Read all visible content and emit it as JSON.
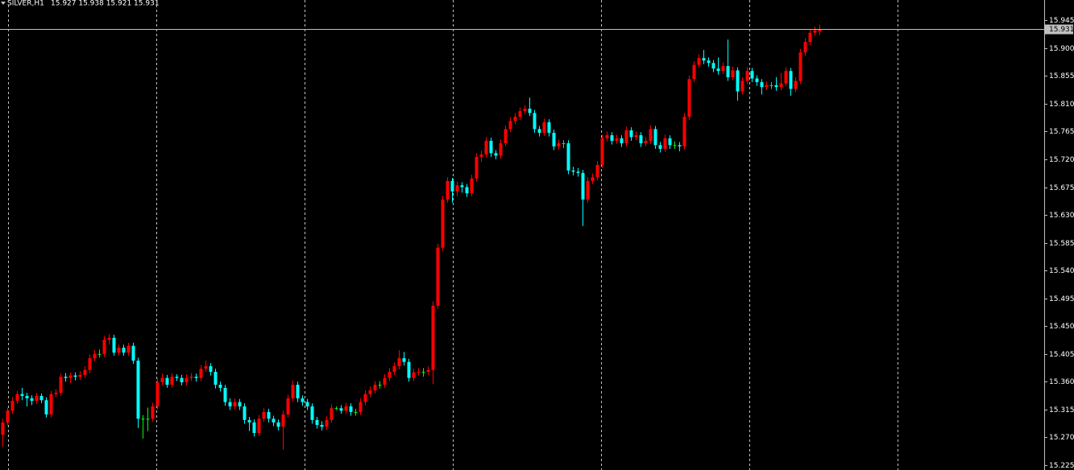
{
  "chart_data": {
    "type": "candlestick",
    "title": "SILVER,H1",
    "subtitle": "15.927 15.938 15.921 15.931",
    "up_color": "#ff0000",
    "down_color": "#00ffff",
    "doji_color": "#00ff00",
    "grid": true,
    "ylim": [
      15.217,
      15.978
    ],
    "yticks": [
      15.945,
      {
        "value": 15.9,
        "label": "15.900"
      },
      15.855,
      {
        "value": 15.81,
        "label": "15.810"
      },
      15.765,
      {
        "value": 15.72,
        "label": "15.720"
      },
      15.675,
      {
        "value": 15.63,
        "label": "15.630"
      },
      15.585,
      {
        "value": 15.54,
        "label": "15.540"
      },
      15.495,
      {
        "value": 15.45,
        "label": "15.450"
      },
      15.405,
      {
        "value": 15.36,
        "label": "15.360"
      },
      15.315,
      {
        "value": 15.27,
        "label": "15.270"
      },
      15.225
    ],
    "bid_line": 15.931,
    "ohlc": [
      [
        15.274,
        15.3,
        15.255,
        15.294
      ],
      [
        15.294,
        15.318,
        15.289,
        15.313
      ],
      [
        15.313,
        15.335,
        15.308,
        15.329
      ],
      [
        15.329,
        15.345,
        15.324,
        15.34
      ],
      [
        15.34,
        15.35,
        15.33,
        15.337
      ],
      [
        15.337,
        15.342,
        15.32,
        15.333
      ],
      [
        15.333,
        15.338,
        15.322,
        15.329
      ],
      [
        15.329,
        15.342,
        15.324,
        15.337
      ],
      [
        15.337,
        15.341,
        15.325,
        15.33
      ],
      [
        15.33,
        15.335,
        15.302,
        15.307
      ],
      [
        15.307,
        15.345,
        15.302,
        15.34
      ],
      [
        15.34,
        15.348,
        15.335,
        15.342
      ],
      [
        15.342,
        15.373,
        15.337,
        15.368
      ],
      [
        15.368,
        15.374,
        15.36,
        15.366
      ],
      [
        15.366,
        15.375,
        15.358,
        15.37
      ],
      [
        15.37,
        15.375,
        15.362,
        15.368
      ],
      [
        15.368,
        15.377,
        15.363,
        15.371
      ],
      [
        15.371,
        15.385,
        15.366,
        15.379
      ],
      [
        15.379,
        15.404,
        15.374,
        15.398
      ],
      [
        15.398,
        15.411,
        15.393,
        15.405
      ],
      [
        15.405,
        15.412,
        15.399,
        15.405
      ],
      [
        15.405,
        15.434,
        15.4,
        15.428
      ],
      [
        15.428,
        15.437,
        15.42,
        15.431
      ],
      [
        15.431,
        15.436,
        15.402,
        15.407
      ],
      [
        15.407,
        15.42,
        15.402,
        15.415
      ],
      [
        15.415,
        15.42,
        15.402,
        15.407
      ],
      [
        15.407,
        15.423,
        15.402,
        15.418
      ],
      [
        15.418,
        15.423,
        15.389,
        15.394
      ],
      [
        15.394,
        15.399,
        15.285,
        15.3
      ],
      [
        15.3,
        15.306,
        15.268,
        15.3
      ],
      [
        15.3,
        15.318,
        15.28,
        15.3
      ],
      [
        15.3,
        15.326,
        15.295,
        15.32
      ],
      [
        15.32,
        15.365,
        15.315,
        15.359
      ],
      [
        15.359,
        15.373,
        15.354,
        15.366
      ],
      [
        15.366,
        15.371,
        15.35,
        15.355
      ],
      [
        15.355,
        15.374,
        15.35,
        15.368
      ],
      [
        15.368,
        15.372,
        15.361,
        15.366
      ],
      [
        15.366,
        15.371,
        15.354,
        15.359
      ],
      [
        15.359,
        15.372,
        15.354,
        15.366
      ],
      [
        15.366,
        15.374,
        15.361,
        15.368
      ],
      [
        15.368,
        15.373,
        15.36,
        15.366
      ],
      [
        15.366,
        15.387,
        15.361,
        15.381
      ],
      [
        15.381,
        15.394,
        15.376,
        15.385
      ],
      [
        15.385,
        15.39,
        15.37,
        15.376
      ],
      [
        15.376,
        15.381,
        15.349,
        15.355
      ],
      [
        15.355,
        15.36,
        15.344,
        15.35
      ],
      [
        15.35,
        15.355,
        15.321,
        15.327
      ],
      [
        15.327,
        15.333,
        15.314,
        15.32
      ],
      [
        15.32,
        15.333,
        15.315,
        15.327
      ],
      [
        15.327,
        15.332,
        15.314,
        15.32
      ],
      [
        15.32,
        15.325,
        15.292,
        15.298
      ],
      [
        15.298,
        15.303,
        15.28,
        15.294
      ],
      [
        15.294,
        15.299,
        15.271,
        15.277
      ],
      [
        15.277,
        15.306,
        15.272,
        15.3
      ],
      [
        15.3,
        15.317,
        15.295,
        15.311
      ],
      [
        15.311,
        15.316,
        15.294,
        15.3
      ],
      [
        15.3,
        15.305,
        15.288,
        15.294
      ],
      [
        15.294,
        15.299,
        15.281,
        15.287
      ],
      [
        15.287,
        15.313,
        15.25,
        15.307
      ],
      [
        15.307,
        15.339,
        15.302,
        15.333
      ],
      [
        15.333,
        15.362,
        15.328,
        15.355
      ],
      [
        15.355,
        15.36,
        15.327,
        15.333
      ],
      [
        15.333,
        15.338,
        15.321,
        15.327
      ],
      [
        15.327,
        15.332,
        15.314,
        15.32
      ],
      [
        15.32,
        15.325,
        15.292,
        15.298
      ],
      [
        15.298,
        15.303,
        15.284,
        15.29
      ],
      [
        15.29,
        15.296,
        15.281,
        15.287
      ],
      [
        15.287,
        15.304,
        15.282,
        15.298
      ],
      [
        15.298,
        15.323,
        15.293,
        15.317
      ],
      [
        15.317,
        15.32,
        15.314,
        15.317
      ],
      [
        15.317,
        15.322,
        15.308,
        15.313
      ],
      [
        15.313,
        15.326,
        15.308,
        15.32
      ],
      [
        15.32,
        15.325,
        15.305,
        15.311
      ],
      [
        15.311,
        15.316,
        15.305,
        15.311
      ],
      [
        15.311,
        15.333,
        15.306,
        15.327
      ],
      [
        15.327,
        15.346,
        15.322,
        15.34
      ],
      [
        15.34,
        15.352,
        15.335,
        15.346
      ],
      [
        15.346,
        15.361,
        15.341,
        15.355
      ],
      [
        15.355,
        15.361,
        15.349,
        15.355
      ],
      [
        15.355,
        15.372,
        15.35,
        15.366
      ],
      [
        15.366,
        15.382,
        15.361,
        15.376
      ],
      [
        15.376,
        15.391,
        15.371,
        15.385
      ],
      [
        15.385,
        15.411,
        15.38,
        15.398
      ],
      [
        15.398,
        15.408,
        15.386,
        15.392
      ],
      [
        15.392,
        15.397,
        15.36,
        15.366
      ],
      [
        15.366,
        15.381,
        15.361,
        15.375
      ],
      [
        15.375,
        15.382,
        15.37,
        15.376
      ],
      [
        15.376,
        15.382,
        15.368,
        15.376
      ],
      [
        15.376,
        15.385,
        15.371,
        15.379
      ],
      [
        15.379,
        15.49,
        15.356,
        15.483
      ],
      [
        15.483,
        15.583,
        15.478,
        15.577
      ],
      [
        15.577,
        15.661,
        15.572,
        15.655
      ],
      [
        15.655,
        15.691,
        15.65,
        15.685
      ],
      [
        15.685,
        15.69,
        15.65,
        15.668
      ],
      [
        15.668,
        15.684,
        15.66,
        15.678
      ],
      [
        15.678,
        15.683,
        15.666,
        15.675
      ],
      [
        15.675,
        15.68,
        15.659,
        15.665
      ],
      [
        15.665,
        15.695,
        15.66,
        15.689
      ],
      [
        15.689,
        15.73,
        15.684,
        15.724
      ],
      [
        15.724,
        15.734,
        15.716,
        15.728
      ],
      [
        15.728,
        15.756,
        15.723,
        15.75
      ],
      [
        15.75,
        15.755,
        15.724,
        15.73
      ],
      [
        15.73,
        15.735,
        15.72,
        15.726
      ],
      [
        15.726,
        15.752,
        15.721,
        15.746
      ],
      [
        15.746,
        15.775,
        15.741,
        15.769
      ],
      [
        15.769,
        15.788,
        15.764,
        15.782
      ],
      [
        15.782,
        15.795,
        15.777,
        15.789
      ],
      [
        15.789,
        15.804,
        15.784,
        15.798
      ],
      [
        15.798,
        15.808,
        15.793,
        15.802
      ],
      [
        15.802,
        15.82,
        15.79,
        15.795
      ],
      [
        15.795,
        15.8,
        15.763,
        15.769
      ],
      [
        15.769,
        15.774,
        15.757,
        15.763
      ],
      [
        15.763,
        15.786,
        15.758,
        15.78
      ],
      [
        15.78,
        15.785,
        15.757,
        15.763
      ],
      [
        15.763,
        15.768,
        15.735,
        15.741
      ],
      [
        15.741,
        15.752,
        15.736,
        15.746
      ],
      [
        15.746,
        15.751,
        15.738,
        15.746
      ],
      [
        15.746,
        15.751,
        15.696,
        15.702
      ],
      [
        15.702,
        15.708,
        15.694,
        15.7
      ],
      [
        15.7,
        15.706,
        15.692,
        15.698
      ],
      [
        15.698,
        15.703,
        15.612,
        15.655
      ],
      [
        15.655,
        15.691,
        15.65,
        15.685
      ],
      [
        15.685,
        15.697,
        15.68,
        15.691
      ],
      [
        15.691,
        15.717,
        15.686,
        15.711
      ],
      [
        15.711,
        15.76,
        15.706,
        15.754
      ],
      [
        15.754,
        15.765,
        15.749,
        15.759
      ],
      [
        15.759,
        15.764,
        15.744,
        15.75
      ],
      [
        15.75,
        15.76,
        15.745,
        15.754
      ],
      [
        15.754,
        15.759,
        15.74,
        15.746
      ],
      [
        15.746,
        15.773,
        15.741,
        15.767
      ],
      [
        15.767,
        15.772,
        15.75,
        15.756
      ],
      [
        15.756,
        15.765,
        15.751,
        15.759
      ],
      [
        15.759,
        15.764,
        15.74,
        15.746
      ],
      [
        15.746,
        15.756,
        15.741,
        15.75
      ],
      [
        15.75,
        15.775,
        15.745,
        15.769
      ],
      [
        15.769,
        15.774,
        15.737,
        15.743
      ],
      [
        15.743,
        15.748,
        15.731,
        15.737
      ],
      [
        15.737,
        15.76,
        15.732,
        15.754
      ],
      [
        15.754,
        15.759,
        15.737,
        15.743
      ],
      [
        15.743,
        15.749,
        15.737,
        15.743
      ],
      [
        15.743,
        15.748,
        15.733,
        15.741
      ],
      [
        15.741,
        15.795,
        15.736,
        15.789
      ],
      [
        15.789,
        15.856,
        15.784,
        15.85
      ],
      [
        15.85,
        15.879,
        15.845,
        15.873
      ],
      [
        15.873,
        15.89,
        15.868,
        15.884
      ],
      [
        15.884,
        15.897,
        15.874,
        15.88
      ],
      [
        15.88,
        15.885,
        15.87,
        15.876
      ],
      [
        15.876,
        15.881,
        15.861,
        15.867
      ],
      [
        15.867,
        15.885,
        15.857,
        15.863
      ],
      [
        15.863,
        15.877,
        15.858,
        15.871
      ],
      [
        15.871,
        15.914,
        15.847,
        15.853
      ],
      [
        15.853,
        15.87,
        15.848,
        15.864
      ],
      [
        15.864,
        15.869,
        15.815,
        15.83
      ],
      [
        15.83,
        15.853,
        15.825,
        15.847
      ],
      [
        15.847,
        15.869,
        15.842,
        15.863
      ],
      [
        15.863,
        15.868,
        15.845,
        15.851
      ],
      [
        15.851,
        15.856,
        15.839,
        15.845
      ],
      [
        15.845,
        15.85,
        15.825,
        15.837
      ],
      [
        15.837,
        15.846,
        15.832,
        15.84
      ],
      [
        15.84,
        15.845,
        15.834,
        15.84
      ],
      [
        15.84,
        15.853,
        15.831,
        15.837
      ],
      [
        15.837,
        15.86,
        15.832,
        15.843
      ],
      [
        15.843,
        15.869,
        15.838,
        15.863
      ],
      [
        15.863,
        15.868,
        15.823,
        15.834
      ],
      [
        15.834,
        15.853,
        15.829,
        15.847
      ],
      [
        15.847,
        15.899,
        15.842,
        15.893
      ],
      [
        15.893,
        15.916,
        15.888,
        15.91
      ],
      [
        15.91,
        15.931,
        15.905,
        15.925
      ],
      [
        15.925,
        15.935,
        15.92,
        15.929
      ],
      [
        15.927,
        15.938,
        15.921,
        15.931
      ]
    ]
  }
}
